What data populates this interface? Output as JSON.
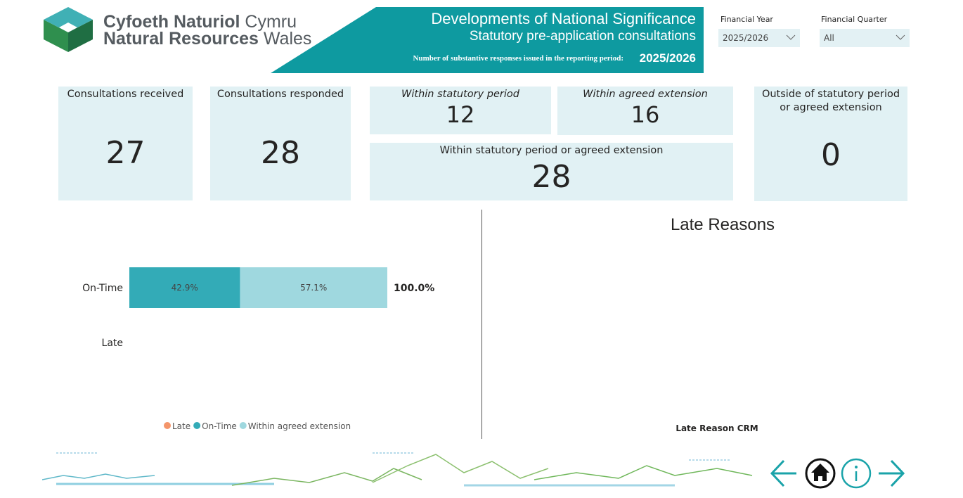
{
  "logo": {
    "welsh_bold": "Cyfoeth Naturiol",
    "welsh_light": "Cymru",
    "english_bold": "Natural Resources",
    "english_light": "Wales"
  },
  "banner": {
    "title": "Developments of National Significance",
    "subtitle": "Statutory pre-application consultations",
    "period_label": "Number of substantive responses issued in the reporting period:",
    "period": "2025/2026"
  },
  "filters": [
    {
      "label": "Financial Year",
      "value": "2025/2026"
    },
    {
      "label": "Financial Quarter",
      "value": "All"
    }
  ],
  "cards": [
    {
      "label": "Consultations received",
      "value": 27
    },
    {
      "label": "Consultations responded",
      "value": 28
    },
    {
      "label": "Within statutory period",
      "value": 12
    },
    {
      "label": "Within agreed extension",
      "value": 16
    },
    {
      "label": "Within statutory period or agreed extension",
      "value": 28
    },
    {
      "label": "Outside of statutory period or agreed extension",
      "value": 0
    }
  ],
  "chart": {
    "type": "bar",
    "orientation": "horizontal",
    "stacked": true,
    "categories": [
      "On-Time",
      "Late"
    ],
    "series": [
      {
        "name": "Late",
        "color": "#f4956a",
        "values": [
          null,
          null
        ]
      },
      {
        "name": "On-Time",
        "color": "#33abb7",
        "values": [
          42.9,
          null
        ],
        "value_labels": [
          "42.9%",
          null
        ]
      },
      {
        "name": "Within agreed extension",
        "color": "#9fd8df",
        "values": [
          57.1,
          null
        ],
        "value_labels": [
          "57.1%",
          null
        ]
      }
    ],
    "totals": [
      100,
      null
    ],
    "total_labels": [
      "100.0%",
      null
    ],
    "xlim": [
      0,
      100
    ],
    "legend": "bottom"
  },
  "late_reasons": {
    "title": "Late Reasons",
    "x_label": "Late Reason CRM"
  }
}
